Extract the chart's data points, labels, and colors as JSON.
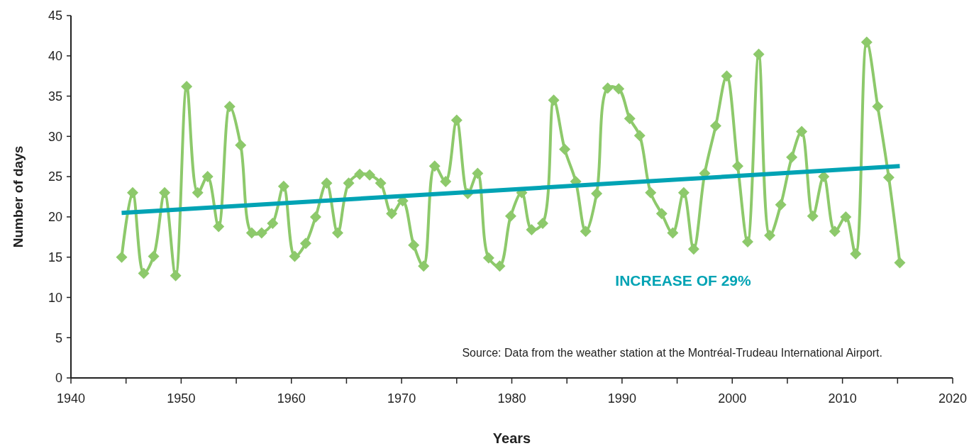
{
  "chart_data": {
    "type": "line",
    "xlabel": "Years",
    "ylabel": "Number of days",
    "xlim": [
      1940,
      2020
    ],
    "ylim": [
      0,
      45
    ],
    "xticks": [
      1940,
      {
        "value": 1945,
        "label": null
      },
      1950,
      {
        "value": 1955,
        "label": null
      },
      1960,
      {
        "value": 1965,
        "label": null
      },
      1970,
      {
        "value": 1975,
        "label": null
      },
      1980,
      {
        "value": 1985,
        "label": null
      },
      1990,
      {
        "value": 1995,
        "label": null
      },
      2000,
      {
        "value": 2005,
        "label": null
      },
      2010,
      {
        "value": 2015,
        "label": null
      },
      2020
    ],
    "yticks": [
      0,
      5,
      10,
      15,
      20,
      25,
      30,
      35,
      40,
      45
    ],
    "grid": false,
    "series": [
      {
        "color": "#8dc96b",
        "marker": "diamond",
        "x": [
          1944.6,
          1945.6,
          1946.6,
          1947.5,
          1948.5,
          1949.5,
          1950.5,
          1951.5,
          1952.4,
          1953.4,
          1954.4,
          1955.4,
          1956.4,
          1957.3,
          1958.3,
          1959.3,
          1960.3,
          1961.3,
          1962.2,
          1963.2,
          1964.2,
          1965.2,
          1966.2,
          1967.1,
          1968.1,
          1969.1,
          1970.1,
          1971.1,
          1972.0,
          1973.0,
          1974.0,
          1975.0,
          1976.0,
          1976.9,
          1977.9,
          1978.9,
          1979.9,
          1980.9,
          1981.8,
          1982.8,
          1983.8,
          1984.8,
          1985.8,
          1986.7,
          1987.7,
          1988.7,
          1989.7,
          1990.7,
          1991.6,
          1992.6,
          1993.6,
          1994.6,
          1995.6,
          1996.5,
          1997.5,
          1998.5,
          1999.5,
          2000.5,
          2001.4,
          2002.4,
          2003.4,
          2004.4,
          2005.4,
          2006.3,
          2007.3,
          2008.3,
          2009.3,
          2010.3,
          2011.2,
          2012.2,
          2013.2,
          2014.2,
          2015.2
        ],
        "values": [
          15,
          23,
          13,
          15.1,
          23,
          12.7,
          36.2,
          23,
          25,
          18.8,
          33.7,
          28.9,
          18,
          18,
          19.2,
          23.8,
          15.1,
          16.7,
          20,
          24.2,
          18,
          24.2,
          25.3,
          25.2,
          24.2,
          20.4,
          22,
          16.5,
          13.9,
          26.3,
          24.4,
          32,
          22.9,
          25.4,
          14.9,
          13.9,
          20.1,
          23,
          18.4,
          19.2,
          34.5,
          28.4,
          24.4,
          18.2,
          22.9,
          36,
          35.9,
          32.2,
          30.1,
          23,
          20.4,
          18,
          23,
          16,
          25.4,
          31.3,
          37.5,
          26.3,
          16.9,
          40.2,
          17.7,
          21.5,
          27.4,
          30.6,
          20.1,
          25,
          18.2,
          20,
          15.4,
          41.7,
          33.7,
          24.9,
          14.3
        ]
      },
      {
        "type": "line",
        "color": "#00a3b4",
        "marker": "none",
        "x": [
          1944.6,
          2015.2
        ],
        "values": [
          20.5,
          26.3
        ]
      }
    ],
    "annotations": [
      "INCREASE OF 29%",
      "Source: Data from the weather station at the Montréal-Trudeau International Airport."
    ]
  }
}
